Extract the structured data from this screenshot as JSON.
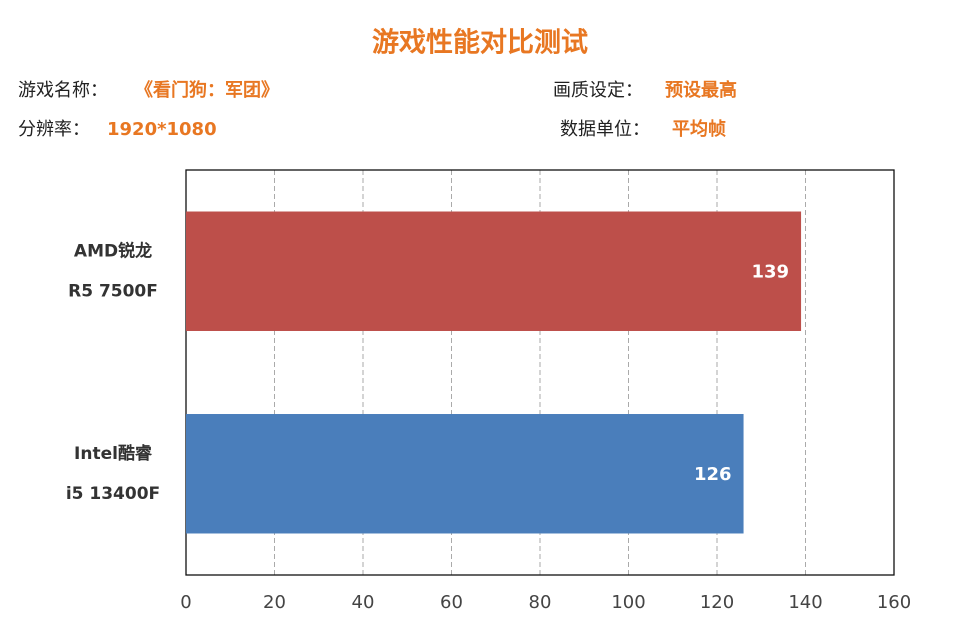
{
  "chart_data": {
    "type": "bar",
    "orientation": "horizontal",
    "title": "游戏性能对比测试",
    "info": [
      {
        "label": "游戏名称：",
        "value": "《看门狗：军团》"
      },
      {
        "label": "画质设定：",
        "value": "预设最高"
      },
      {
        "label": "分辨率：",
        "value": "1920*1080"
      },
      {
        "label": "数据单位：",
        "value": "平均帧"
      }
    ],
    "categories": [
      [
        "AMD锐龙",
        "R5 7500F"
      ],
      [
        "Intel酷睿",
        "i5 13400F"
      ]
    ],
    "values": [
      139,
      126
    ],
    "colors": [
      "#bd4f4a",
      "#4a7ebb"
    ],
    "xlim": [
      0,
      160
    ],
    "xticks": [
      0,
      20,
      40,
      60,
      80,
      100,
      120,
      140,
      160
    ],
    "grid": true
  }
}
